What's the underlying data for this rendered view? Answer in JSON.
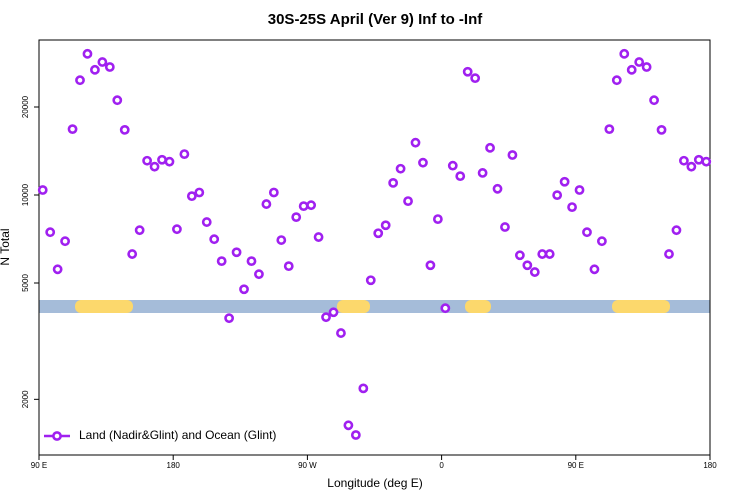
{
  "chart_data": {
    "type": "scatter",
    "title": "30S-25S April (Ver 9)   Inf to -Inf",
    "x_label": "Longitude (deg E)",
    "y_label": "N Total",
    "log_y": true,
    "legend": "bottom-left",
    "xlim": [
      90,
      540
    ],
    "xticks": [
      {
        "value": 90,
        "label": "90 E"
      },
      180,
      {
        "value": 270,
        "label": "90 W"
      },
      {
        "value": 360,
        "label": "0"
      },
      {
        "value": 450,
        "label": "90 E"
      },
      {
        "value": 540,
        "label": "180"
      }
    ],
    "ylim": [
      1290,
      33900
    ],
    "yticks": [
      2000,
      5000,
      10000,
      20000
    ],
    "series": [
      {
        "name": "Land (Nadir&Glint) and Ocean (Glint)",
        "color": "#a020f0",
        "x": [
          92.5,
          97.5,
          102.5,
          107.5,
          112.5,
          117.5,
          122.5,
          127.5,
          132.5,
          137.5,
          142.5,
          147.5,
          152.5,
          157.5,
          162.5,
          167.5,
          172.5,
          177.5,
          182.5,
          187.5,
          192.5,
          197.5,
          202.5,
          207.5,
          212.5,
          217.5,
          222.5,
          227.5,
          232.5,
          237.5,
          242.5,
          247.5,
          252.5,
          257.5,
          262.5,
          267.5,
          272.5,
          277.5,
          282.5,
          287.5,
          292.5,
          297.5,
          302.5,
          307.5,
          312.5,
          317.5,
          322.5,
          327.5,
          332.5,
          337.5,
          342.5,
          347.5,
          352.5,
          357.5,
          362.5,
          367.5,
          372.5,
          377.5,
          382.5,
          387.5,
          392.5,
          397.5,
          402.5,
          407.5,
          412.5,
          417.5,
          422.5,
          427.5,
          432.5,
          437.5,
          442.5,
          447.5,
          452.5,
          457.5,
          462.5,
          467.5,
          472.5,
          477.5,
          482.5,
          487.5,
          492.5,
          497.5,
          502.5,
          507.5,
          512.5,
          517.5,
          522.5,
          527.5,
          532.5,
          537.5
        ],
        "values": [
          10400,
          7460,
          5570,
          6950,
          16800,
          24700,
          30400,
          26800,
          28500,
          27400,
          21100,
          16700,
          6280,
          7580,
          13100,
          12500,
          13200,
          13000,
          7640,
          13800,
          9910,
          10200,
          8080,
          7060,
          5940,
          3790,
          6370,
          4760,
          5940,
          5360,
          9310,
          10200,
          7010,
          5710,
          8400,
          9160,
          9230,
          7180,
          3820,
          3970,
          3370,
          1630,
          1510,
          2180,
          5110,
          7400,
          7880,
          11000,
          12300,
          9530,
          15100,
          12900,
          5750,
          8270,
          4100,
          12600,
          11600,
          26400,
          25100,
          11900,
          14500,
          10500,
          7770,
          13700,
          6220,
          5750,
          5450,
          6280,
          6280,
          9990,
          11100,
          9090,
          10400,
          7460,
          5570,
          6950,
          16800,
          24700,
          30400,
          26800,
          28500,
          27400,
          21100,
          16700,
          6280,
          7580,
          13100,
          12500,
          13200,
          13000
        ]
      }
    ]
  }
}
